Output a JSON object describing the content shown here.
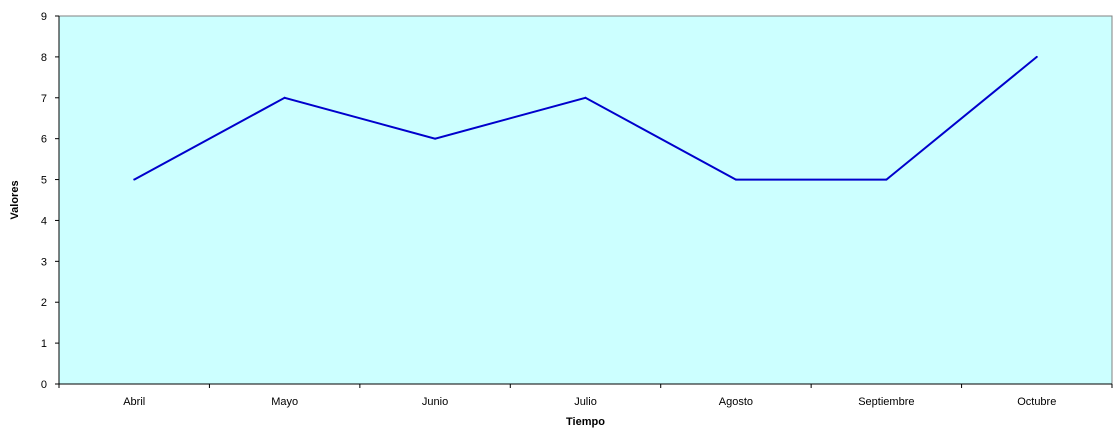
{
  "chart_data": {
    "type": "line",
    "title": "",
    "xlabel": "Tiempo",
    "ylabel": "Valores",
    "categories": [
      "Abril",
      "Mayo",
      "Junio",
      "Julio",
      "Agosto",
      "Septiembre",
      "Octubre"
    ],
    "series": [
      {
        "values": [
          5,
          7,
          6,
          7,
          5,
          5,
          8
        ],
        "color": "#0000cc"
      }
    ],
    "ylim": [
      0,
      9
    ],
    "yticks": [
      "0",
      "1",
      "2",
      "3",
      "4",
      "5",
      "6",
      "7",
      "8",
      "9"
    ],
    "grid": false,
    "legend": "none",
    "plot_background": "#ccffff"
  }
}
